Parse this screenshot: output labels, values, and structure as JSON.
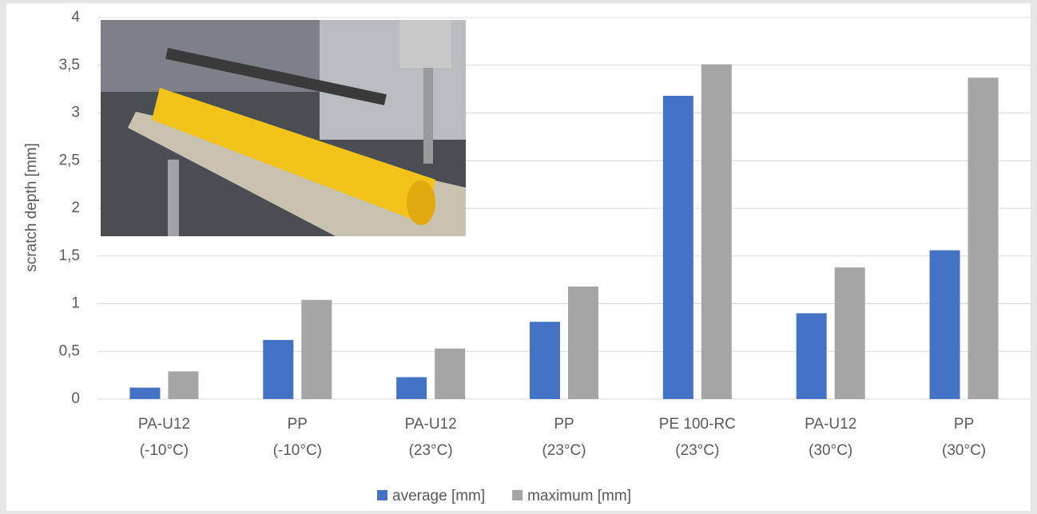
{
  "chart_data": {
    "type": "bar",
    "y_label": "scratch depth [mm]",
    "categories": [
      [
        "PA-U12",
        "(-10°C)"
      ],
      [
        "PP",
        "(-10°C)"
      ],
      [
        "PA-U12",
        "(23°C)"
      ],
      [
        "PP",
        "(23°C)"
      ],
      [
        "PE 100-RC",
        "(23°C)"
      ],
      [
        "PA-U12",
        "(30°C)"
      ],
      [
        "PP",
        "(30°C)"
      ]
    ],
    "series": [
      {
        "name": "average [mm]",
        "color": "#4472c4",
        "values": [
          0.12,
          0.62,
          0.23,
          0.81,
          3.18,
          0.9,
          1.56
        ]
      },
      {
        "name": "maximum [mm]",
        "color": "#a5a5a5",
        "values": [
          0.29,
          1.04,
          0.53,
          1.18,
          3.51,
          1.38,
          3.37
        ]
      }
    ],
    "ylim": [
      0,
      4
    ],
    "yticks": [
      0,
      {
        "value": 0.5,
        "label": "0,5"
      },
      1,
      {
        "value": 1.5,
        "label": "1,5"
      },
      2,
      {
        "value": 2.5,
        "label": "2,5"
      },
      3,
      {
        "value": 3.5,
        "label": "3,5"
      },
      4
    ],
    "grid": true,
    "legend": "bottom"
  }
}
